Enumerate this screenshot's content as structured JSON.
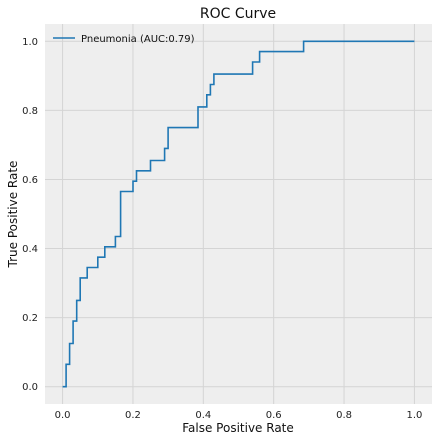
{
  "chart_data": {
    "type": "line",
    "title": "ROC Curve",
    "xlabel": "False Positive Rate",
    "ylabel": "True Positive Rate",
    "xlim": [
      -0.05,
      1.05
    ],
    "ylim": [
      -0.05,
      1.05
    ],
    "xticks": [
      0.0,
      0.2,
      0.4,
      0.6,
      0.8,
      1.0
    ],
    "yticks": [
      0.0,
      0.2,
      0.4,
      0.6,
      0.8,
      1.0
    ],
    "xtick_labels": [
      "0.0",
      "0.2",
      "0.4",
      "0.6",
      "0.8",
      "1.0"
    ],
    "ytick_labels": [
      "0.0",
      "0.2",
      "0.4",
      "0.6",
      "0.8",
      "1.0"
    ],
    "grid": true,
    "legend_position": "top-left",
    "colors": {
      "series": "#1f77b4",
      "plot_bg": "#eeeeee",
      "grid": "#d4d4d4"
    },
    "series": [
      {
        "name": "Pneumonia (AUC:0.79)",
        "step": true,
        "x": [
          0.0,
          0.01,
          0.01,
          0.02,
          0.02,
          0.03,
          0.03,
          0.04,
          0.04,
          0.05,
          0.05,
          0.07,
          0.07,
          0.1,
          0.1,
          0.12,
          0.12,
          0.15,
          0.15,
          0.165,
          0.165,
          0.2,
          0.2,
          0.21,
          0.21,
          0.25,
          0.25,
          0.29,
          0.29,
          0.3,
          0.3,
          0.385,
          0.385,
          0.41,
          0.41,
          0.42,
          0.42,
          0.43,
          0.43,
          0.54,
          0.54,
          0.56,
          0.56,
          0.685,
          0.685,
          1.0
        ],
        "y": [
          0.0,
          0.0,
          0.065,
          0.065,
          0.125,
          0.125,
          0.19,
          0.19,
          0.25,
          0.25,
          0.315,
          0.315,
          0.345,
          0.345,
          0.375,
          0.375,
          0.405,
          0.405,
          0.435,
          0.435,
          0.565,
          0.565,
          0.595,
          0.595,
          0.625,
          0.625,
          0.655,
          0.655,
          0.69,
          0.69,
          0.75,
          0.75,
          0.81,
          0.81,
          0.845,
          0.845,
          0.875,
          0.875,
          0.905,
          0.905,
          0.94,
          0.94,
          0.97,
          0.97,
          1.0,
          1.0
        ]
      }
    ]
  }
}
